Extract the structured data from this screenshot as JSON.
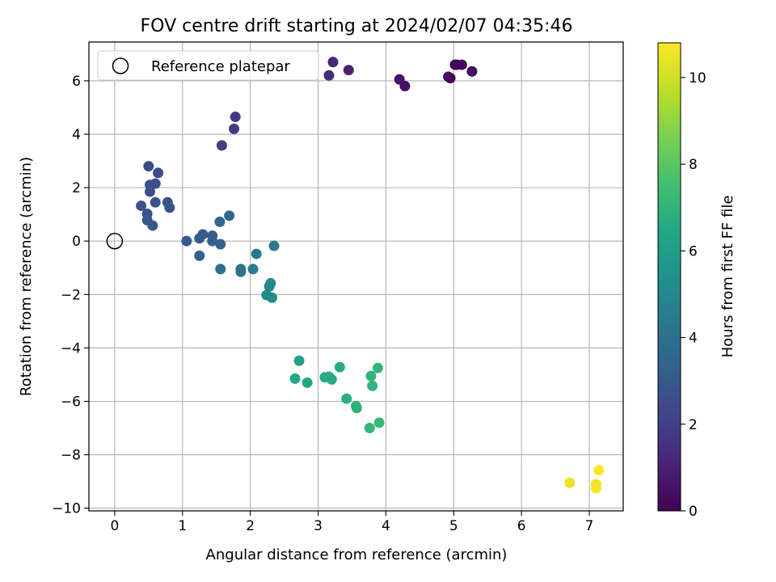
{
  "chart_data": {
    "type": "scatter",
    "title": "FOV centre drift starting at 2024/02/07 04:35:46",
    "xlabel": "Angular distance from reference (arcmin)",
    "ylabel": "Rotation from reference (arcmin)",
    "xlim": [
      -0.38,
      7.5
    ],
    "ylim": [
      -10.1,
      7.45
    ],
    "xticks": [
      0,
      1,
      2,
      3,
      4,
      5,
      6,
      7
    ],
    "xtick_labels": [
      "0",
      "1",
      "2",
      "3",
      "4",
      "5",
      "6",
      "7"
    ],
    "yticks": [
      -10,
      -8,
      -6,
      -4,
      -2,
      0,
      2,
      4,
      6
    ],
    "ytick_labels": [
      "−10",
      "−8",
      "−6",
      "−4",
      "−2",
      "0",
      "2",
      "4",
      "6"
    ],
    "grid": true,
    "colormap": "viridis",
    "colorbar": {
      "label": "Hours from first FF file",
      "range": [
        0,
        10.8
      ],
      "ticks": [
        0,
        2,
        4,
        6,
        8,
        10
      ],
      "tick_labels": [
        "0",
        "2",
        "4",
        "6",
        "8",
        "10"
      ]
    },
    "legend": {
      "position": "top-left",
      "entries": [
        {
          "label": "Reference platepar",
          "marker": "open-circle"
        }
      ]
    },
    "reference_point": {
      "x": 0,
      "y": 0
    },
    "series": [
      {
        "points": [
          {
            "x": 4.95,
            "y": 6.1,
            "c": 0.1
          },
          {
            "x": 5.05,
            "y": 6.6,
            "c": 0.2
          },
          {
            "x": 5.12,
            "y": 6.6,
            "c": 0.3
          },
          {
            "x": 5.27,
            "y": 6.35,
            "c": 0.3
          },
          {
            "x": 4.92,
            "y": 6.15,
            "c": 0.3
          },
          {
            "x": 5.02,
            "y": 6.6,
            "c": 0.15
          },
          {
            "x": 4.28,
            "y": 5.8,
            "c": 0.5
          },
          {
            "x": 4.2,
            "y": 6.05,
            "c": 0.6
          },
          {
            "x": 3.45,
            "y": 6.4,
            "c": 1.0
          },
          {
            "x": 3.22,
            "y": 6.7,
            "c": 1.2
          },
          {
            "x": 3.16,
            "y": 6.2,
            "c": 1.3
          },
          {
            "x": 1.78,
            "y": 4.65,
            "c": 1.8
          },
          {
            "x": 1.76,
            "y": 4.2,
            "c": 1.9
          },
          {
            "x": 1.58,
            "y": 3.58,
            "c": 2.0
          },
          {
            "x": 0.5,
            "y": 2.8,
            "c": 2.5
          },
          {
            "x": 0.64,
            "y": 2.55,
            "c": 2.5
          },
          {
            "x": 0.6,
            "y": 2.15,
            "c": 2.6
          },
          {
            "x": 0.52,
            "y": 2.1,
            "c": 2.6
          },
          {
            "x": 0.52,
            "y": 1.85,
            "c": 2.6
          },
          {
            "x": 0.6,
            "y": 1.45,
            "c": 2.7
          },
          {
            "x": 0.78,
            "y": 1.45,
            "c": 2.7
          },
          {
            "x": 0.81,
            "y": 1.25,
            "c": 2.7
          },
          {
            "x": 0.39,
            "y": 1.32,
            "c": 2.8
          },
          {
            "x": 0.48,
            "y": 1.02,
            "c": 2.8
          },
          {
            "x": 0.48,
            "y": 0.78,
            "c": 2.9
          },
          {
            "x": 0.56,
            "y": 0.58,
            "c": 2.9
          },
          {
            "x": 1.06,
            "y": 0.0,
            "c": 3.0
          },
          {
            "x": 1.25,
            "y": 0.1,
            "c": 3.1
          },
          {
            "x": 1.3,
            "y": 0.25,
            "c": 3.1
          },
          {
            "x": 1.44,
            "y": 0.2,
            "c": 3.2
          },
          {
            "x": 1.44,
            "y": 0.0,
            "c": 3.3
          },
          {
            "x": 1.56,
            "y": -0.12,
            "c": 3.4
          },
          {
            "x": 1.25,
            "y": -0.55,
            "c": 3.4
          },
          {
            "x": 1.55,
            "y": 0.72,
            "c": 3.5
          },
          {
            "x": 1.69,
            "y": 0.95,
            "c": 3.6
          },
          {
            "x": 1.56,
            "y": -1.05,
            "c": 4.0
          },
          {
            "x": 1.86,
            "y": -1.05,
            "c": 4.2
          },
          {
            "x": 1.86,
            "y": -1.15,
            "c": 4.2
          },
          {
            "x": 2.09,
            "y": -0.48,
            "c": 4.3
          },
          {
            "x": 2.04,
            "y": -1.05,
            "c": 4.4
          },
          {
            "x": 2.35,
            "y": -0.18,
            "c": 4.5
          },
          {
            "x": 2.28,
            "y": -1.7,
            "c": 5.0
          },
          {
            "x": 2.3,
            "y": -1.58,
            "c": 5.0
          },
          {
            "x": 2.24,
            "y": -2.02,
            "c": 5.1
          },
          {
            "x": 2.32,
            "y": -2.12,
            "c": 5.2
          },
          {
            "x": 2.72,
            "y": -4.48,
            "c": 6.2
          },
          {
            "x": 2.66,
            "y": -5.15,
            "c": 6.5
          },
          {
            "x": 2.84,
            "y": -5.3,
            "c": 6.5
          },
          {
            "x": 3.1,
            "y": -5.1,
            "c": 6.6
          },
          {
            "x": 3.16,
            "y": -5.08,
            "c": 6.6
          },
          {
            "x": 3.2,
            "y": -5.18,
            "c": 6.6
          },
          {
            "x": 3.32,
            "y": -4.72,
            "c": 6.7
          },
          {
            "x": 3.42,
            "y": -5.9,
            "c": 6.8
          },
          {
            "x": 3.56,
            "y": -6.18,
            "c": 6.9
          },
          {
            "x": 3.57,
            "y": -6.25,
            "c": 6.9
          },
          {
            "x": 3.78,
            "y": -5.05,
            "c": 7.0
          },
          {
            "x": 3.8,
            "y": -5.42,
            "c": 7.0
          },
          {
            "x": 3.88,
            "y": -4.75,
            "c": 7.1
          },
          {
            "x": 3.76,
            "y": -7.0,
            "c": 7.1
          },
          {
            "x": 3.9,
            "y": -6.8,
            "c": 7.2
          },
          {
            "x": 6.71,
            "y": -9.05,
            "c": 10.5
          },
          {
            "x": 7.1,
            "y": -9.1,
            "c": 10.6
          },
          {
            "x": 7.1,
            "y": -9.25,
            "c": 10.7
          },
          {
            "x": 7.14,
            "y": -8.58,
            "c": 10.8
          }
        ]
      }
    ]
  }
}
